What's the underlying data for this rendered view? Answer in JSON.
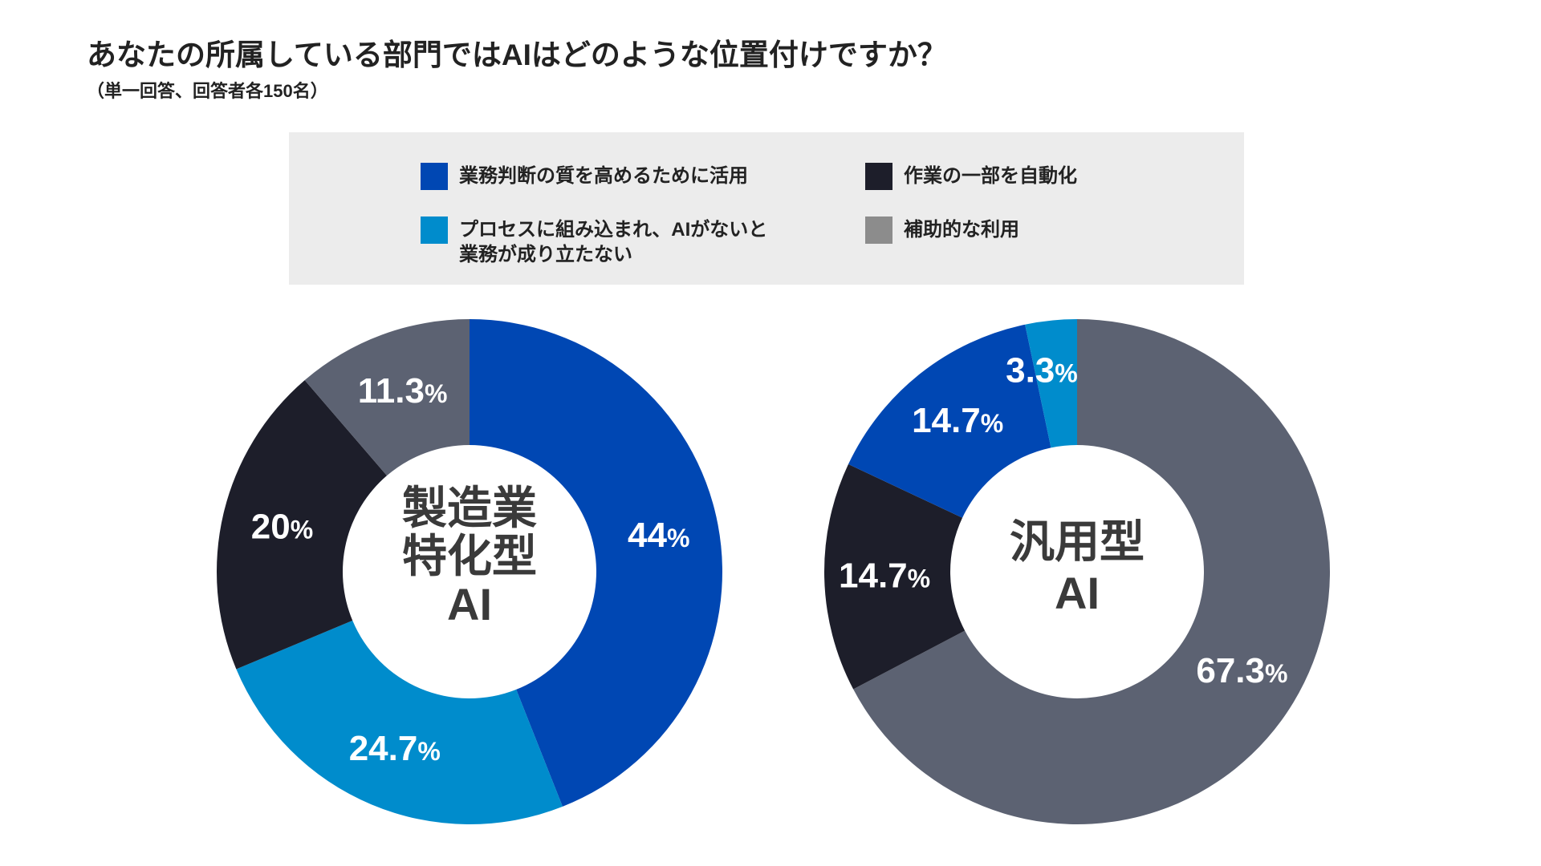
{
  "title": "あなたの所属している部門ではAIはどのような位置付けですか？",
  "subtitle": "（単一回答、回答者各150名）",
  "legend": [
    {
      "label": "業務判断の質を高めるために活用",
      "color": "#0047b3"
    },
    {
      "label": "作業の一部を自動化",
      "color": "#1d1e2a"
    },
    {
      "label": "プロセスに組み込まれ、AIがないと\n業務が成り立たない",
      "color": "#008ccc"
    },
    {
      "label": "補助的な利用",
      "color": "#8c8c8c"
    }
  ],
  "chart_data": [
    {
      "type": "pie",
      "donut": true,
      "center_label": [
        "製造業",
        "特化型",
        "AI"
      ],
      "slices": [
        {
          "label": "業務判断の質を高めるために活用",
          "value": 44,
          "display": "44",
          "color": "#0047b3"
        },
        {
          "label": "プロセスに組み込まれ、AIがないと業務が成り立たない",
          "value": 24.7,
          "display": "24.7",
          "color": "#008ccc"
        },
        {
          "label": "作業の一部を自動化",
          "value": 20,
          "display": "20",
          "color": "#1d1e2a"
        },
        {
          "label": "補助的な利用",
          "value": 11.3,
          "display": "11.3",
          "color": "#5c6272"
        }
      ]
    },
    {
      "type": "pie",
      "donut": true,
      "center_label": [
        "汎用型",
        "AI"
      ],
      "slices": [
        {
          "label": "補助的な利用",
          "value": 67.3,
          "display": "67.3",
          "color": "#5c6272"
        },
        {
          "label": "作業の一部を自動化",
          "value": 14.7,
          "display": "14.7",
          "color": "#1d1e2a"
        },
        {
          "label": "業務判断の質を高めるために活用",
          "value": 14.7,
          "display": "14.7",
          "color": "#0047b3"
        },
        {
          "label": "プロセスに組み込まれ、AIがないと業務が成り立たない",
          "value": 3.3,
          "display": "3.3",
          "color": "#008ccc"
        }
      ]
    }
  ],
  "percent_sign": "%"
}
